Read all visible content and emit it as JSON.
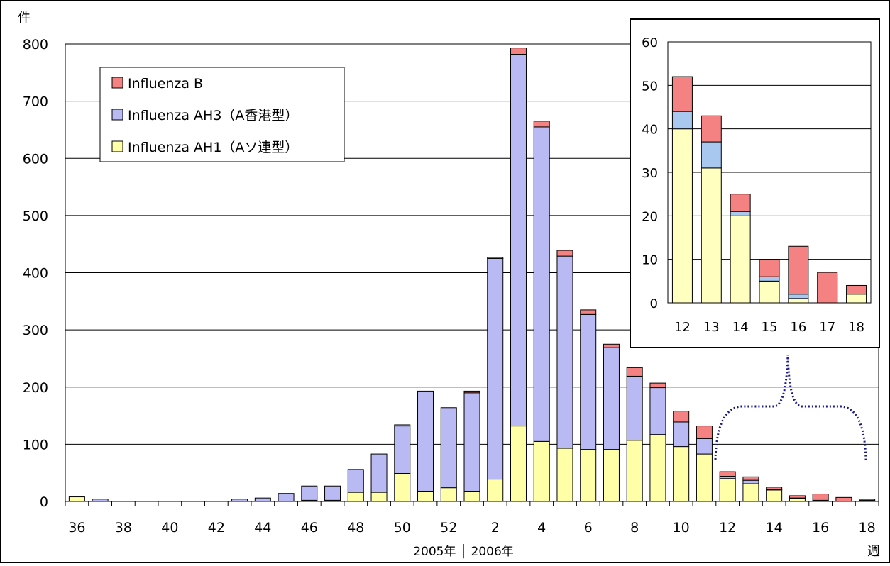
{
  "chart_data": [
    {
      "type": "bar",
      "stacked": true,
      "y_unit_label": "件",
      "x_unit_label": "週",
      "x_year_label": "2005年 │ 2006年",
      "ylim": [
        0,
        800
      ],
      "yticks": [
        0,
        100,
        200,
        300,
        400,
        500,
        600,
        700,
        800
      ],
      "grid": true,
      "legend_position": "top-left",
      "categories": [
        "36",
        "37",
        "38",
        "39",
        "40",
        "41",
        "42",
        "43",
        "44",
        "45",
        "46",
        "47",
        "48",
        "49",
        "50",
        "51",
        "52",
        "1",
        "2",
        "3",
        "4",
        "5",
        "6",
        "7",
        "8",
        "9",
        "10",
        "11",
        "12",
        "13",
        "14",
        "15",
        "16",
        "17",
        "18"
      ],
      "xtick_labels": [
        "36",
        "38",
        "40",
        "42",
        "44",
        "46",
        "48",
        "50",
        "52",
        "2",
        "4",
        "6",
        "8",
        "10",
        "12",
        "14",
        "16",
        "18"
      ],
      "series": [
        {
          "name": "Influenza AH1（Aソ連型）",
          "color": "#ffffa8",
          "values": [
            8,
            0,
            0,
            0,
            0,
            0,
            0,
            0,
            0,
            0,
            2,
            2,
            16,
            16,
            49,
            18,
            24,
            18,
            39,
            132,
            105,
            93,
            91,
            91,
            107,
            117,
            96,
            83,
            40,
            31,
            20,
            5,
            1,
            0,
            2
          ]
        },
        {
          "name": "Influenza AH3（A香港型）",
          "color": "#b9b9f4",
          "values": [
            0,
            4,
            0,
            0,
            0,
            0,
            0,
            4,
            6,
            14,
            25,
            25,
            40,
            67,
            83,
            175,
            140,
            172,
            386,
            650,
            550,
            336,
            236,
            178,
            112,
            82,
            43,
            27,
            4,
            6,
            1,
            1,
            1,
            0,
            0
          ]
        },
        {
          "name": "Influenza B",
          "color": "#f48282",
          "values": [
            0,
            0,
            0,
            0,
            0,
            0,
            0,
            0,
            0,
            0,
            0,
            0,
            0,
            0,
            2,
            0,
            0,
            3,
            2,
            11,
            10,
            10,
            8,
            6,
            15,
            8,
            19,
            22,
            8,
            6,
            4,
            4,
            11,
            7,
            2
          ]
        }
      ]
    },
    {
      "type": "bar",
      "stacked": true,
      "ylim": [
        0,
        60
      ],
      "yticks": [
        0,
        10,
        20,
        30,
        40,
        50,
        60
      ],
      "grid": true,
      "categories": [
        "12",
        "13",
        "14",
        "15",
        "16",
        "17",
        "18"
      ],
      "series": [
        {
          "name": "Influenza AH1（Aソ連型）",
          "color": "#ffffc0",
          "values": [
            40,
            31,
            20,
            5,
            1,
            0,
            2
          ]
        },
        {
          "name": "Influenza AH3（A香港型）",
          "color": "#a8c8f0",
          "values": [
            4,
            6,
            1,
            1,
            1,
            0,
            0
          ]
        },
        {
          "name": "Influenza B",
          "color": "#f48282",
          "values": [
            8,
            6,
            4,
            4,
            11,
            7,
            2
          ]
        }
      ]
    }
  ]
}
